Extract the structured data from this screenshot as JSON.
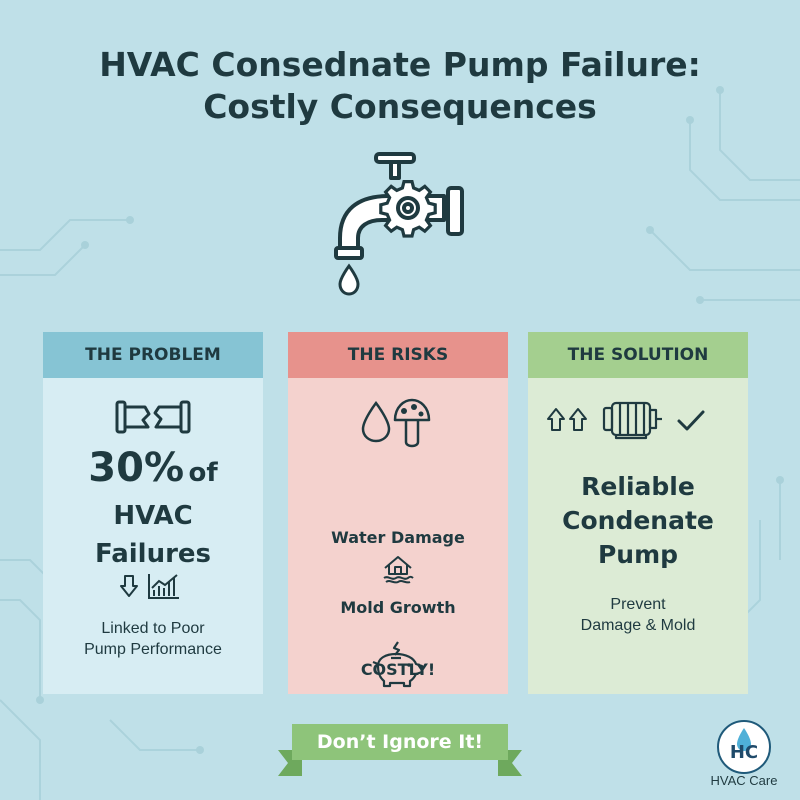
{
  "title": {
    "line1": "HVAC Consednate Pump Failure:",
    "line2": "Costly Consequences"
  },
  "icons": {
    "main": "leaking-faucet-gear-icon",
    "problem": [
      "broken-pipe-icon",
      "down-arrow-icon",
      "bar-chart-icon"
    ],
    "risks": [
      "water-drop-icon",
      "mushroom-icon",
      "flooded-house-icon",
      "piggy-bank-icon"
    ],
    "solution": [
      "up-arrows-icon",
      "pump-motor-icon",
      "checkmark-icon"
    ]
  },
  "panels": {
    "problem": {
      "heading": "THE PROBLEM",
      "stat_number": "30%",
      "stat_of": "of",
      "stat_line2": "HVAC",
      "stat_line3": "Failures",
      "note_line1": "Linked to Poor",
      "note_line2": "Pump Performance"
    },
    "risks": {
      "heading": "THE RISKS",
      "item1": "Water Damage",
      "item2": "Mold Growth",
      "item3": "COSTLY!"
    },
    "solution": {
      "heading": "THE SOLUTION",
      "title_line1": "Reliable",
      "title_line2": "Condenate",
      "title_line3": "Pump",
      "note_line1": "Prevent",
      "note_line2": "Damage & Mold"
    }
  },
  "banner": {
    "text": "Don’t Ignore It!"
  },
  "logo": {
    "mark": "HC",
    "name": "HVAC Care"
  },
  "colors": {
    "background": "#bfe0e8",
    "problem_header": "#86c4d4",
    "risks_header": "#e7928c",
    "solution_header": "#a4cf8f",
    "banner": "#8ec47a",
    "text": "#1f3a40"
  }
}
